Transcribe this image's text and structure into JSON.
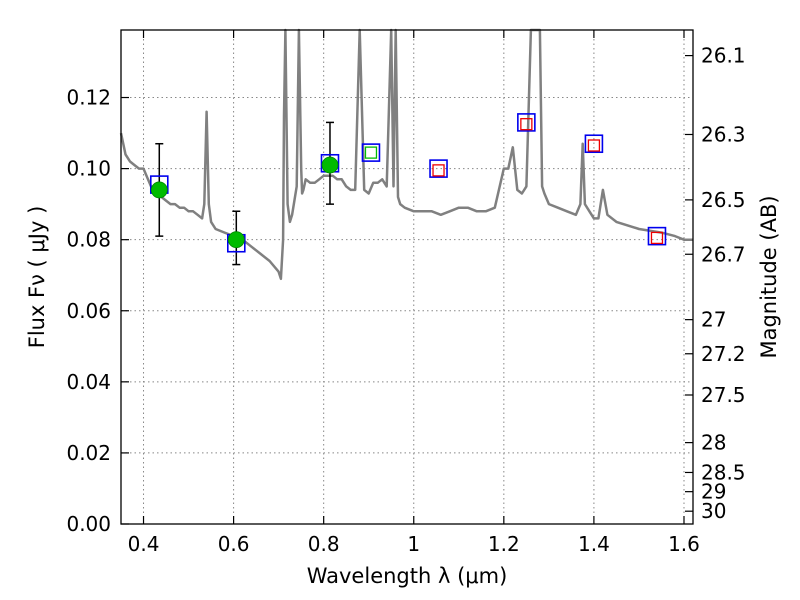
{
  "chart_data": {
    "type": "scatter",
    "title": "",
    "xlabel": "Wavelength  λ (μm)",
    "ylabel": "Flux  Fν  ( μJy )",
    "right_ylabel": "Magnitude (AB)",
    "xlim": [
      0.35,
      1.62
    ],
    "ylim": [
      0.0,
      0.139
    ],
    "grid": true,
    "grid_style": "dotted",
    "x_ticks": [
      {
        "value": 0.4,
        "label": "0.4"
      },
      {
        "value": 0.6,
        "label": "0.6"
      },
      {
        "value": 0.8,
        "label": "0.8"
      },
      {
        "value": 1.0,
        "label": "1"
      },
      {
        "value": 1.2,
        "label": "1.2"
      },
      {
        "value": 1.4,
        "label": "1.4"
      },
      {
        "value": 1.6,
        "label": "1.6"
      }
    ],
    "y_ticks": [
      {
        "value": 0.0,
        "label": "0.00"
      },
      {
        "value": 0.02,
        "label": "0.02"
      },
      {
        "value": 0.04,
        "label": "0.04"
      },
      {
        "value": 0.06,
        "label": "0.06"
      },
      {
        "value": 0.08,
        "label": "0.08"
      },
      {
        "value": 0.1,
        "label": "0.10"
      },
      {
        "value": 0.12,
        "label": "0.12"
      }
    ],
    "right_ticks": [
      {
        "flux": 0.1318,
        "label": "26.1"
      },
      {
        "flux": 0.1096,
        "label": "26.3"
      },
      {
        "flux": 0.0912,
        "label": "26.5"
      },
      {
        "flux": 0.0759,
        "label": "26.7"
      },
      {
        "flux": 0.0575,
        "label": "27"
      },
      {
        "flux": 0.0479,
        "label": "27.2"
      },
      {
        "flux": 0.0363,
        "label": "27.5"
      },
      {
        "flux": 0.0229,
        "label": "28"
      },
      {
        "flux": 0.0145,
        "label": "28.5"
      },
      {
        "flux": 0.0091,
        "label": "29"
      },
      {
        "flux": 0.0036,
        "label": "30"
      }
    ],
    "colors": {
      "model": "#808080",
      "observed": "#00bb00",
      "model_photometry": "#0000ee",
      "predicted": "#ee0000",
      "predicted_fill": "#00bb00",
      "errorbar": "#000000",
      "grid": "#888888"
    },
    "series": [
      {
        "role": "model_spectrum",
        "kind": "line",
        "x": [
          0.35,
          0.36,
          0.37,
          0.38,
          0.39,
          0.4,
          0.41,
          0.42,
          0.43,
          0.44,
          0.45,
          0.46,
          0.47,
          0.48,
          0.49,
          0.5,
          0.51,
          0.52,
          0.53,
          0.535,
          0.54,
          0.545,
          0.55,
          0.56,
          0.58,
          0.6,
          0.62,
          0.64,
          0.66,
          0.68,
          0.7,
          0.705,
          0.71,
          0.712,
          0.715,
          0.72,
          0.725,
          0.73,
          0.74,
          0.745,
          0.75,
          0.752,
          0.755,
          0.76,
          0.77,
          0.78,
          0.79,
          0.8,
          0.81,
          0.82,
          0.83,
          0.84,
          0.85,
          0.86,
          0.87,
          0.88,
          0.89,
          0.9,
          0.91,
          0.92,
          0.93,
          0.94,
          0.95,
          0.955,
          0.96,
          0.965,
          0.97,
          0.98,
          1.0,
          1.02,
          1.04,
          1.06,
          1.08,
          1.1,
          1.12,
          1.14,
          1.16,
          1.18,
          1.2,
          1.21,
          1.22,
          1.23,
          1.24,
          1.25,
          1.26,
          1.27,
          1.28,
          1.285,
          1.29,
          1.3,
          1.32,
          1.34,
          1.36,
          1.37,
          1.375,
          1.38,
          1.39,
          1.4,
          1.41,
          1.42,
          1.43,
          1.45,
          1.5,
          1.55,
          1.58,
          1.6,
          1.62
        ],
        "y": [
          0.11,
          0.104,
          0.102,
          0.101,
          0.1,
          0.1,
          0.097,
          0.094,
          0.093,
          0.092,
          0.091,
          0.09,
          0.09,
          0.089,
          0.089,
          0.088,
          0.088,
          0.087,
          0.086,
          0.09,
          0.116,
          0.09,
          0.085,
          0.083,
          0.082,
          0.081,
          0.08,
          0.078,
          0.076,
          0.074,
          0.071,
          0.069,
          0.08,
          0.115,
          0.139,
          0.09,
          0.085,
          0.087,
          0.095,
          0.139,
          0.1,
          0.093,
          0.094,
          0.097,
          0.096,
          0.096,
          0.097,
          0.098,
          0.098,
          0.098,
          0.097,
          0.097,
          0.095,
          0.094,
          0.094,
          0.139,
          0.094,
          0.093,
          0.096,
          0.096,
          0.097,
          0.095,
          0.139,
          0.095,
          0.139,
          0.092,
          0.09,
          0.089,
          0.088,
          0.088,
          0.088,
          0.087,
          0.088,
          0.089,
          0.089,
          0.088,
          0.088,
          0.089,
          0.1,
          0.1,
          0.106,
          0.094,
          0.093,
          0.095,
          0.139,
          0.139,
          0.139,
          0.095,
          0.093,
          0.09,
          0.089,
          0.088,
          0.087,
          0.09,
          0.107,
          0.09,
          0.088,
          0.086,
          0.086,
          0.094,
          0.087,
          0.085,
          0.083,
          0.082,
          0.081,
          0.08,
          0.08
        ]
      },
      {
        "role": "observed_photometry",
        "kind": "points_with_errorbars",
        "points": [
          {
            "x": 0.435,
            "y": 0.094,
            "yerr_low": 0.013,
            "yerr_high": 0.013
          },
          {
            "x": 0.606,
            "y": 0.08,
            "yerr_low": 0.007,
            "yerr_high": 0.008
          },
          {
            "x": 0.814,
            "y": 0.101,
            "yerr_low": 0.011,
            "yerr_high": 0.012
          }
        ]
      },
      {
        "role": "model_photometry",
        "kind": "open_squares",
        "points": [
          {
            "x": 0.435,
            "y": 0.0955
          },
          {
            "x": 0.606,
            "y": 0.079
          },
          {
            "x": 0.814,
            "y": 0.1015
          },
          {
            "x": 0.905,
            "y": 0.1045
          },
          {
            "x": 1.055,
            "y": 0.1
          },
          {
            "x": 1.25,
            "y": 0.113
          },
          {
            "x": 1.4,
            "y": 0.107
          },
          {
            "x": 1.54,
            "y": 0.081
          }
        ]
      },
      {
        "role": "predicted_photometry",
        "kind": "open_squares_small",
        "points": [
          {
            "x": 0.905,
            "y": 0.1045,
            "fill": "green"
          },
          {
            "x": 1.055,
            "y": 0.0995,
            "fill": "red"
          },
          {
            "x": 1.25,
            "y": 0.1125,
            "fill": "red"
          },
          {
            "x": 1.4,
            "y": 0.1065,
            "fill": "red"
          },
          {
            "x": 1.54,
            "y": 0.0805,
            "fill": "red"
          }
        ]
      }
    ]
  }
}
